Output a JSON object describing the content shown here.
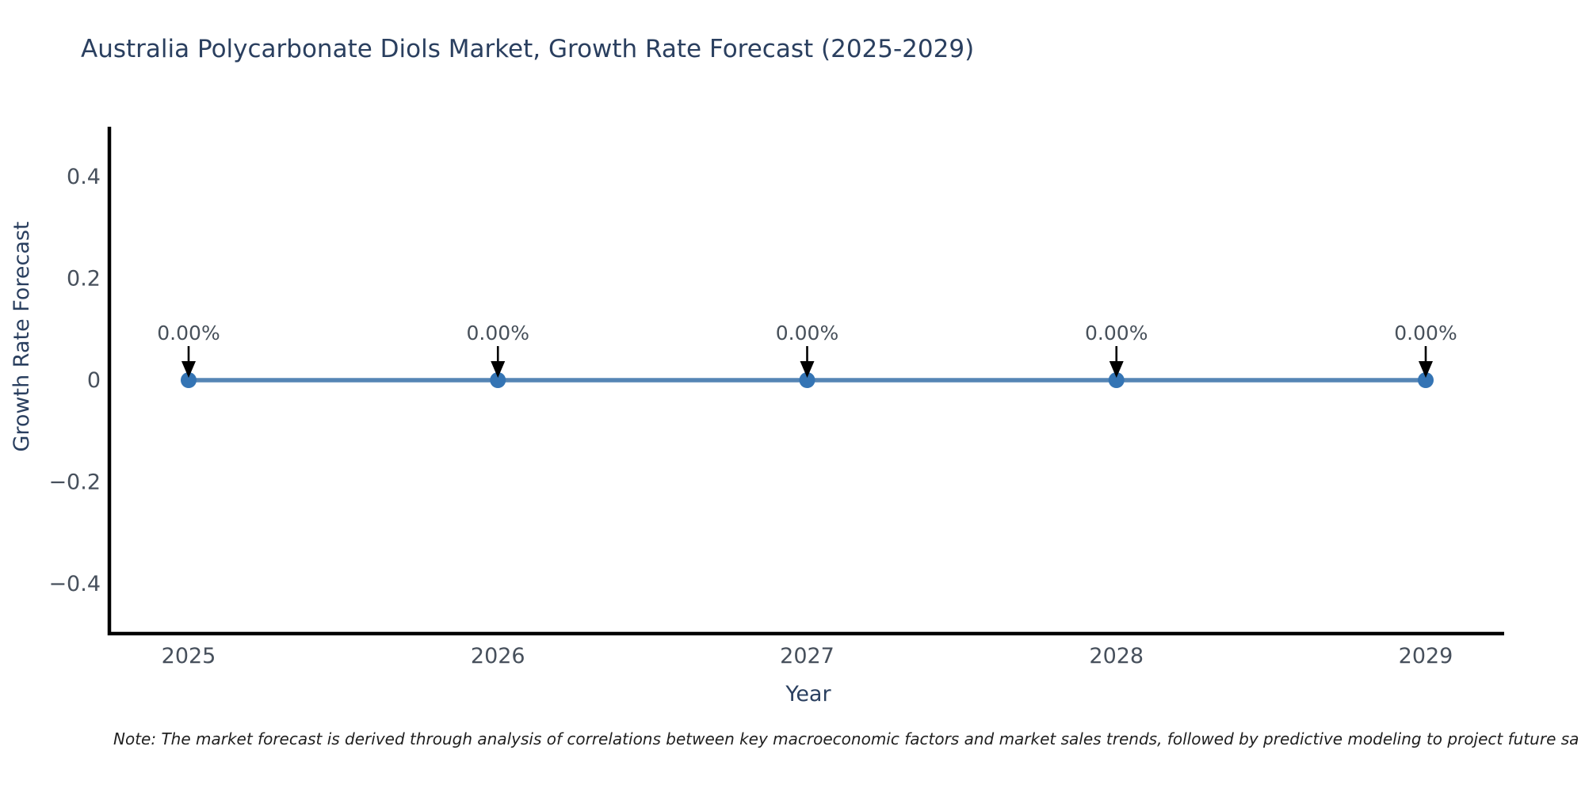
{
  "note": "Note: The market forecast is derived through analysis of correlations between key macroeconomic factors and market sales trends, followed by predictive modeling to project future sa",
  "chart_data": {
    "type": "line",
    "title": "Australia Polycarbonate Diols Market, Growth Rate Forecast (2025-2029)",
    "xlabel": "Year",
    "ylabel": "Growth Rate Forecast",
    "x": [
      2025,
      2026,
      2027,
      2028,
      2029
    ],
    "xtick_labels": [
      "2025",
      "2026",
      "2027",
      "2028",
      "2029"
    ],
    "series": [
      {
        "name": "Growth Rate Forecast",
        "values": [
          0,
          0,
          0,
          0,
          0
        ]
      }
    ],
    "point_labels": [
      "0.00%",
      "0.00%",
      "0.00%",
      "0.00%",
      "0.00%"
    ],
    "yticks": [
      0.4,
      0.2,
      0,
      -0.2,
      -0.4
    ],
    "ytick_labels": [
      "0.4",
      "0.2",
      "0",
      "−0.2",
      "−0.4"
    ],
    "ylim": [
      -0.5,
      0.5
    ],
    "grid": false,
    "legend": "none",
    "annotation_style": "down-arrow-to-point",
    "colors": {
      "line": "#5585b5",
      "marker": "#3474b4",
      "arrow": "#000000",
      "spine": "#000000",
      "title": "#2a3f5f",
      "axis_label": "#2a3f5f",
      "tick": "#47505c",
      "annotation": "#47505a",
      "note": "#1f1f1f",
      "background": "#ffffff"
    }
  }
}
